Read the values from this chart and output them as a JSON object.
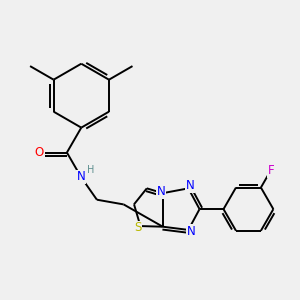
{
  "background_color": "#f0f0f0",
  "bond_color": "#000000",
  "atom_colors": {
    "N": "#0000ff",
    "O": "#ff0000",
    "S": "#b8b800",
    "F": "#cc00cc",
    "H": "#5f9090",
    "C": "#000000"
  },
  "figsize": [
    3.0,
    3.0
  ],
  "dpi": 100,
  "lw": 1.4,
  "fs": 8.5
}
